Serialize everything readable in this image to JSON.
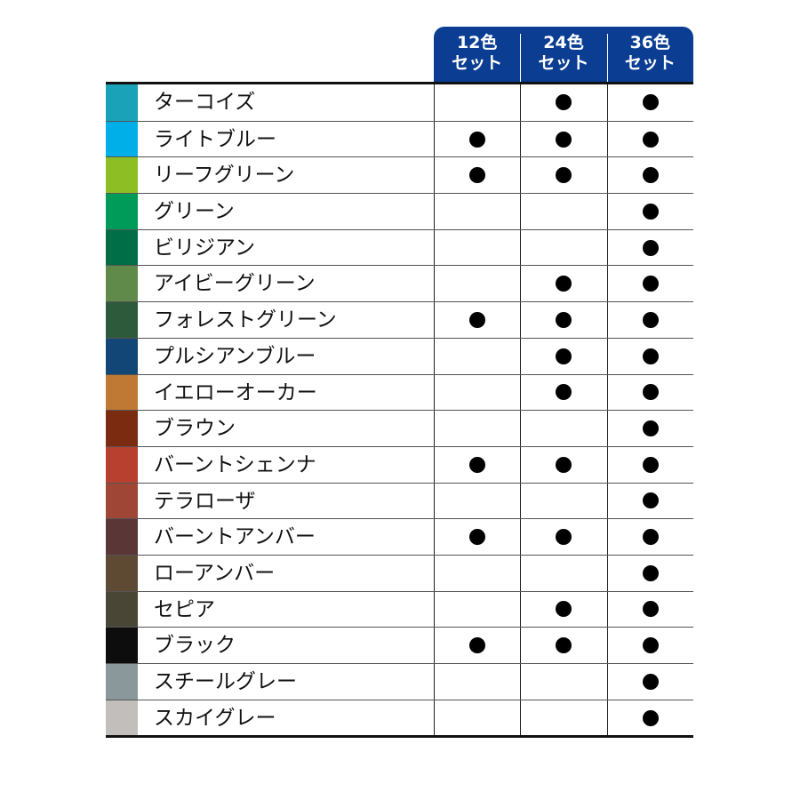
{
  "header": {
    "columns": [
      {
        "line1": "12色",
        "line2": "セット"
      },
      {
        "line1": "24色",
        "line2": "セット"
      },
      {
        "line1": "36色",
        "line2": "セット"
      }
    ],
    "color": "#0b3e92"
  },
  "rows": [
    {
      "name": "ターコイズ",
      "color": "#19a2b8",
      "sets": [
        false,
        true,
        true
      ]
    },
    {
      "name": "ライトブルー",
      "color": "#00afe8",
      "sets": [
        true,
        true,
        true
      ]
    },
    {
      "name": "リーフグリーン",
      "color": "#8dbf24",
      "sets": [
        true,
        true,
        true
      ]
    },
    {
      "name": "グリーン",
      "color": "#009b58",
      "sets": [
        false,
        false,
        true
      ]
    },
    {
      "name": "ビリジアン",
      "color": "#006e46",
      "sets": [
        false,
        false,
        true
      ]
    },
    {
      "name": "アイビーグリーン",
      "color": "#5f8a4a",
      "sets": [
        false,
        true,
        true
      ]
    },
    {
      "name": "フォレストグリーン",
      "color": "#2d5a3b",
      "sets": [
        true,
        true,
        true
      ]
    },
    {
      "name": "プルシアンブルー",
      "color": "#124677",
      "sets": [
        false,
        true,
        true
      ]
    },
    {
      "name": "イエローオーカー",
      "color": "#c07934",
      "sets": [
        false,
        true,
        true
      ]
    },
    {
      "name": "ブラウン",
      "color": "#7b2b10",
      "sets": [
        false,
        false,
        true
      ]
    },
    {
      "name": "バーントシェンナ",
      "color": "#b8402e",
      "sets": [
        true,
        true,
        true
      ]
    },
    {
      "name": "テラローザ",
      "color": "#9f4636",
      "sets": [
        false,
        false,
        true
      ]
    },
    {
      "name": "バーントアンバー",
      "color": "#5a3636",
      "sets": [
        true,
        true,
        true
      ]
    },
    {
      "name": "ローアンバー",
      "color": "#5e4a33",
      "sets": [
        false,
        false,
        true
      ]
    },
    {
      "name": "セピア",
      "color": "#4a4636",
      "sets": [
        false,
        true,
        true
      ]
    },
    {
      "name": "ブラック",
      "color": "#0d0d0d",
      "sets": [
        true,
        true,
        true
      ]
    },
    {
      "name": "スチールグレー",
      "color": "#8a979b",
      "sets": [
        false,
        false,
        true
      ]
    },
    {
      "name": "スカイグレー",
      "color": "#c2bebb",
      "sets": [
        false,
        false,
        true
      ]
    }
  ]
}
